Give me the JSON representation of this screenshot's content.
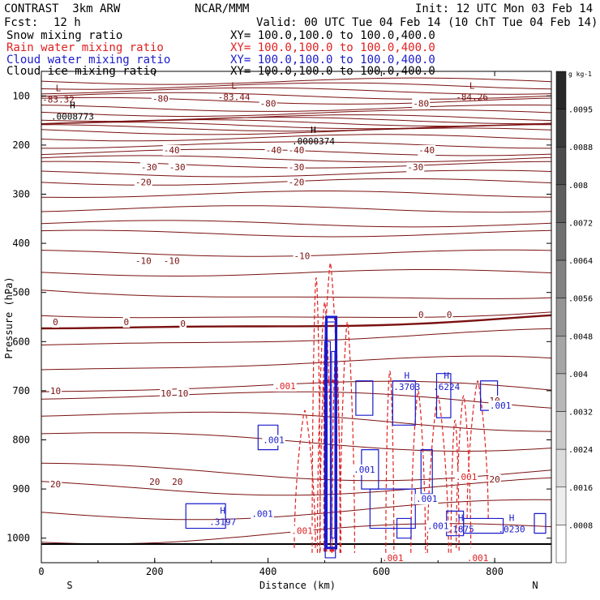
{
  "header": {
    "model": "CONTRAST  3km ARW",
    "org": "NCAR/MMM",
    "init": "Init: 12 UTC Mon 03 Feb 14",
    "fcst_label": "Fcst:",
    "fcst_value": "12 h",
    "valid": "Valid: 00 UTC Tue 04 Feb 14 (10 ChT Tue 04 Feb 14)"
  },
  "fields": [
    {
      "name": "Snow mixing ratio",
      "xy": "XY= 100.0,100.0 to 100.0,400.0",
      "color": "#000000"
    },
    {
      "name": "Rain water mixing ratio",
      "xy": "XY= 100.0,100.0 to 100.0,400.0",
      "color": "#e02020"
    },
    {
      "name": "Cloud water mixing ratio",
      "xy": "XY= 100.0,100.0 to 100.0,400.0",
      "color": "#1a1acc"
    },
    {
      "name": "Cloud ice mixing ratio",
      "xy": "XY= 100.0,100.0 to 100.0,400.0",
      "color": "#000000"
    }
  ],
  "chart_data": {
    "type": "contour cross-section",
    "xlabel": "Distance (km)",
    "ylabel": "Pressure (hPa)",
    "xlim": [
      0,
      900
    ],
    "ylim": [
      1050,
      50
    ],
    "x_ticks": [
      "0",
      "200",
      "400",
      "600",
      "800"
    ],
    "y_ticks": [
      "100",
      "200",
      "300",
      "400",
      "500",
      "600",
      "700",
      "800",
      "900",
      "1000"
    ],
    "x_end_labels": {
      "left": "S",
      "right": "N"
    },
    "temperature_contours": [
      {
        "label": "-80",
        "x": 210,
        "p": 105
      },
      {
        "label": "-80",
        "x": 400,
        "p": 115
      },
      {
        "label": "-80",
        "x": 670,
        "p": 115
      },
      {
        "label": "-40",
        "x": 230,
        "p": 210
      },
      {
        "label": "-40",
        "x": 410,
        "p": 210
      },
      {
        "label": "-40",
        "x": 450,
        "p": 210
      },
      {
        "label": "-40",
        "x": 680,
        "p": 210
      },
      {
        "label": "-30",
        "x": 190,
        "p": 245
      },
      {
        "label": "-30",
        "x": 240,
        "p": 245
      },
      {
        "label": "-30",
        "x": 450,
        "p": 245
      },
      {
        "label": "-30",
        "x": 660,
        "p": 245
      },
      {
        "label": "-20",
        "x": 180,
        "p": 275
      },
      {
        "label": "-20",
        "x": 450,
        "p": 275
      },
      {
        "label": "-10",
        "x": 180,
        "p": 435
      },
      {
        "label": "-10",
        "x": 230,
        "p": 435
      },
      {
        "label": "-10",
        "x": 460,
        "p": 425
      },
      {
        "label": "0",
        "x": 25,
        "p": 560
      },
      {
        "label": "0",
        "x": 150,
        "p": 560
      },
      {
        "label": "0",
        "x": 250,
        "p": 563
      },
      {
        "label": "0",
        "x": 670,
        "p": 545
      },
      {
        "label": "0",
        "x": 720,
        "p": 545
      },
      {
        "label": "10",
        "x": 25,
        "p": 700
      },
      {
        "label": "10",
        "x": 220,
        "p": 705
      },
      {
        "label": "10",
        "x": 250,
        "p": 705
      },
      {
        "label": "10",
        "x": 800,
        "p": 720
      },
      {
        "label": "20",
        "x": 25,
        "p": 890
      },
      {
        "label": "20",
        "x": 200,
        "p": 885
      },
      {
        "label": "20",
        "x": 240,
        "p": 885
      },
      {
        "label": "20",
        "x": 800,
        "p": 880
      }
    ],
    "extrema": [
      {
        "kind": "L",
        "value": "-83.32",
        "x": 30,
        "p": 100,
        "color": "#7a1010"
      },
      {
        "kind": "L",
        "value": "-83.44",
        "x": 340,
        "p": 95,
        "color": "#7a1010"
      },
      {
        "kind": "L",
        "value": "-84.26",
        "x": 760,
        "p": 95,
        "color": "#7a1010"
      },
      {
        "kind": "H",
        "value": ".0008773",
        "x": 55,
        "p": 135,
        "color": "#000000"
      },
      {
        "kind": "H",
        "value": ".0000374",
        "x": 480,
        "p": 185,
        "color": "#000000"
      },
      {
        "kind": "H",
        "value": ".3703",
        "x": 645,
        "p": 685,
        "color": "#1a1acc"
      },
      {
        "kind": "H",
        "value": ".6224",
        "x": 715,
        "p": 685,
        "color": "#1a1acc"
      },
      {
        "kind": "H",
        "value": ".1875",
        "x": 740,
        "p": 975,
        "color": "#1a1acc"
      },
      {
        "kind": "H",
        "value": ".0230",
        "x": 830,
        "p": 975,
        "color": "#1a1acc"
      },
      {
        "kind": "H",
        "value": ".3197",
        "x": 320,
        "p": 960,
        "color": "#1a1acc"
      }
    ],
    "cloud_labels": [
      {
        "text": ".001",
        "x": 410,
        "p": 800
      },
      {
        "text": ".001",
        "x": 390,
        "p": 950
      },
      {
        "text": ".001",
        "x": 570,
        "p": 860
      },
      {
        "text": ".001",
        "x": 680,
        "p": 920
      },
      {
        "text": ".001",
        "x": 810,
        "p": 730
      },
      {
        "text": ".001",
        "x": 700,
        "p": 975
      }
    ],
    "rain_labels": [
      {
        "text": ".001",
        "x": 430,
        "p": 690
      },
      {
        "text": ".001",
        "x": 460,
        "p": 985
      },
      {
        "text": ".001",
        "x": 620,
        "p": 1040
      },
      {
        "text": ".001",
        "x": 750,
        "p": 875
      },
      {
        "text": ".001",
        "x": 770,
        "p": 1040
      }
    ],
    "colorbar": {
      "unit": "g kg-1",
      "ticks": [
        ".0095",
        ".0088",
        ".008",
        ".0072",
        ".0064",
        ".0056",
        ".0048",
        ".004",
        ".0032",
        ".0024",
        ".0016",
        ".0008"
      ]
    }
  }
}
